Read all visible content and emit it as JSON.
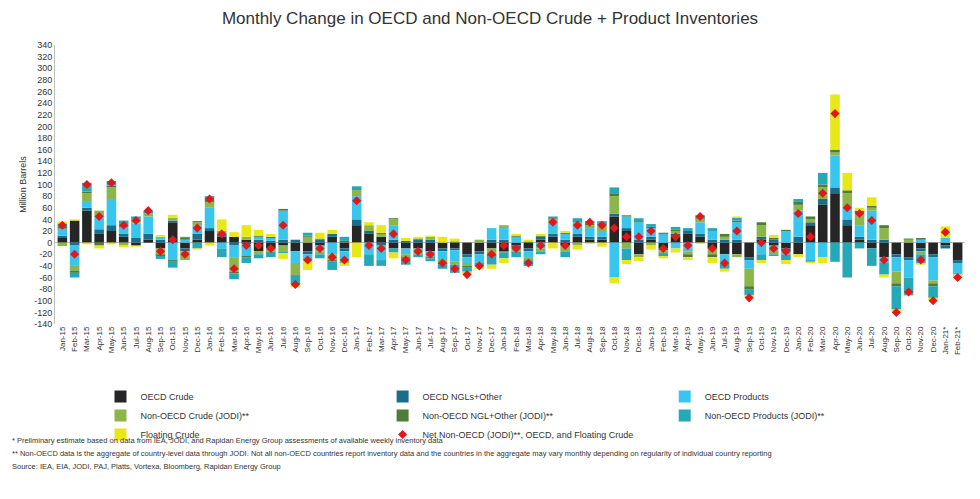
{
  "chart_data": {
    "type": "bar",
    "title": "Monthly Change in OECD and Non-OECD Crude + Product Inventories",
    "y_label": "Million Barrels",
    "categories": [
      "Jan-15",
      "Feb-15",
      "Mar-15",
      "Apr-15",
      "May-15",
      "Jun-15",
      "Jul-15",
      "Aug-15",
      "Sep-15",
      "Oct-15",
      "Nov-15",
      "Dec-15",
      "Jan-16",
      "Feb-16",
      "Mar-16",
      "Apr-16",
      "May-16",
      "Jun-16",
      "Jul-16",
      "Aug-16",
      "Sep-16",
      "Oct-16",
      "Nov-16",
      "Dec-16",
      "Jan-17",
      "Feb-17",
      "Mar-17",
      "Apr-17",
      "May-17",
      "Jun-17",
      "Jul-17",
      "Aug-17",
      "Sep-17",
      "Oct-17",
      "Nov-17",
      "Dec-17",
      "Jan-18",
      "Feb-18",
      "Mar-18",
      "Apr-18",
      "May-18",
      "Jun-18",
      "Jul-18",
      "Aug-18",
      "Sep-18",
      "Oct-18",
      "Nov-18",
      "Dec-18",
      "Jan-19",
      "Feb-19",
      "Mar-19",
      "Apr-19",
      "May-19",
      "Jun-19",
      "Jul-19",
      "Aug-19",
      "Sep-19",
      "Oct-19",
      "Nov-19",
      "Dec-19",
      "Jan-20",
      "Feb-20",
      "Mar-20",
      "Apr-20",
      "May-20",
      "Jun-20",
      "Jul-20",
      "Aug-20",
      "Sep-20",
      "Oct-20",
      "Nov-20",
      "Dec-20",
      "Jan-21*",
      "Feb-21*"
    ],
    "series": [
      {
        "name": "OECD Crude",
        "type": "bar",
        "color": "#262626",
        "values": [
          8,
          38,
          55,
          15,
          20,
          10,
          -5,
          5,
          -10,
          35,
          -10,
          5,
          20,
          10,
          10,
          5,
          -15,
          -10,
          -5,
          -15,
          -15,
          -5,
          10,
          -10,
          30,
          15,
          10,
          -10,
          -10,
          -10,
          -15,
          -10,
          -10,
          -20,
          -15,
          -10,
          -15,
          -5,
          -10,
          5,
          10,
          -5,
          10,
          5,
          5,
          45,
          20,
          -20,
          5,
          -10,
          10,
          15,
          10,
          -10,
          -20,
          -20,
          -25,
          5,
          -5,
          -10,
          -20,
          30,
          65,
          85,
          30,
          5,
          -10,
          -25,
          -20,
          -25,
          -10,
          -20,
          -5,
          -30
        ]
      },
      {
        "name": "OECD NGLs+Other",
        "type": "bar",
        "color": "#1b6e8a",
        "values": [
          4,
          -5,
          5,
          8,
          10,
          5,
          8,
          10,
          5,
          3,
          -5,
          10,
          5,
          5,
          -5,
          -3,
          5,
          3,
          5,
          5,
          -5,
          5,
          5,
          -5,
          10,
          5,
          -5,
          5,
          3,
          5,
          5,
          -5,
          -3,
          -5,
          -5,
          5,
          5,
          -5,
          -5,
          5,
          5,
          5,
          5,
          5,
          5,
          5,
          5,
          5,
          5,
          -3,
          5,
          5,
          5,
          5,
          5,
          5,
          -5,
          5,
          5,
          -5,
          10,
          5,
          10,
          10,
          10,
          5,
          5,
          5,
          -5,
          -5,
          -5,
          -5,
          -5,
          -5
        ]
      },
      {
        "name": "OECD Products",
        "type": "bar",
        "color": "#38c6ee",
        "values": [
          12,
          -35,
          10,
          20,
          45,
          12,
          25,
          30,
          5,
          -30,
          5,
          15,
          35,
          -10,
          -20,
          -20,
          5,
          5,
          50,
          -20,
          -10,
          -10,
          -20,
          -15,
          40,
          -20,
          -25,
          25,
          -10,
          -5,
          -10,
          -15,
          -20,
          -10,
          -15,
          20,
          20,
          10,
          -10,
          -10,
          20,
          10,
          20,
          15,
          10,
          -60,
          20,
          30,
          15,
          15,
          -10,
          -15,
          20,
          15,
          -15,
          30,
          -15,
          -20,
          -5,
          20,
          45,
          -30,
          -25,
          55,
          20,
          20,
          50,
          -10,
          -25,
          -30,
          5,
          -40,
          8,
          -20
        ]
      },
      {
        "name": "Non-OECD Crude (JODI)**",
        "type": "bar",
        "color": "#8cb54a",
        "values": [
          -6,
          -8,
          15,
          12,
          20,
          -5,
          5,
          5,
          -10,
          5,
          -15,
          5,
          10,
          5,
          -25,
          5,
          -5,
          -5,
          -10,
          -20,
          10,
          -5,
          -10,
          -5,
          10,
          10,
          5,
          10,
          -5,
          -5,
          5,
          -5,
          -5,
          -5,
          5,
          -10,
          5,
          -5,
          -5,
          -5,
          5,
          -10,
          -5,
          5,
          10,
          30,
          -10,
          -5,
          -5,
          -5,
          5,
          -5,
          5,
          -10,
          5,
          -5,
          -30,
          20,
          -10,
          -5,
          10,
          5,
          20,
          5,
          25,
          20,
          5,
          20,
          -20,
          5,
          -5,
          -5,
          0,
          0
        ]
      },
      {
        "name": "Non-OECD NGL+Other (JODI)**",
        "type": "bar",
        "color": "#4f7d39",
        "values": [
          3,
          -4,
          3,
          -5,
          3,
          3,
          2,
          0,
          -3,
          -3,
          3,
          2,
          5,
          0,
          -3,
          -2,
          2,
          2,
          3,
          -2,
          2,
          2,
          -2,
          3,
          2,
          0,
          2,
          2,
          -3,
          2,
          -2,
          -2,
          2,
          -2,
          0,
          -3,
          -2,
          2,
          2,
          2,
          2,
          2,
          2,
          2,
          2,
          5,
          2,
          2,
          2,
          2,
          2,
          -5,
          2,
          -5,
          5,
          3,
          -5,
          5,
          3,
          2,
          5,
          5,
          5,
          5,
          5,
          5,
          3,
          5,
          -5,
          2,
          3,
          -5,
          0,
          0
        ]
      },
      {
        "name": "Non-OECD Products (JODI)**",
        "type": "bar",
        "color": "#25a9b8",
        "values": [
          6,
          -8,
          15,
          0,
          8,
          8,
          5,
          5,
          -5,
          -10,
          2,
          -10,
          5,
          -15,
          -10,
          -10,
          -7,
          -10,
          -3,
          -15,
          5,
          -7,
          -15,
          7,
          5,
          -20,
          -10,
          -7,
          -10,
          -5,
          -5,
          -8,
          -14,
          -8,
          -5,
          -15,
          -10,
          -10,
          -10,
          -5,
          3,
          -10,
          5,
          5,
          5,
          10,
          -20,
          5,
          5,
          -5,
          5,
          5,
          5,
          5,
          -10,
          5,
          -10,
          -10,
          -3,
          -10,
          5,
          -3,
          20,
          -33,
          -60,
          -10,
          -30,
          -20,
          -40,
          -30,
          -15,
          -20,
          0,
          0
        ]
      },
      {
        "name": "Floating Crude",
        "type": "bar",
        "color": "#e8e817",
        "values": [
          3,
          2,
          -3,
          -5,
          -3,
          -3,
          -2,
          0,
          3,
          5,
          0,
          -2,
          -5,
          20,
          8,
          20,
          10,
          5,
          -10,
          -5,
          -17,
          10,
          7,
          -5,
          -25,
          5,
          13,
          -10,
          5,
          3,
          2,
          10,
          5,
          -5,
          -5,
          -7,
          -8,
          3,
          3,
          3,
          -10,
          3,
          -7,
          -2,
          -7,
          -10,
          -7,
          -7,
          -7,
          -4,
          -7,
          -5,
          -2,
          -10,
          -5,
          2,
          -5,
          -5,
          5,
          -7,
          -5,
          -2,
          -10,
          95,
          30,
          5,
          15,
          -5,
          -5,
          -2,
          -3,
          -5,
          20,
          -5
        ]
      },
      {
        "name": "Net Non-OECD (JODI)**, OECD, and Floating Crude",
        "type": "scatter",
        "marker": "diamond",
        "color": "#e0181e",
        "values": [
          30,
          -20,
          100,
          45,
          103,
          30,
          38,
          55,
          -15,
          5,
          -20,
          25,
          75,
          15,
          -45,
          -5,
          -5,
          -10,
          30,
          -72,
          -30,
          -10,
          -25,
          -30,
          72,
          -5,
          -10,
          15,
          -30,
          -15,
          -20,
          -35,
          -45,
          -55,
          -40,
          -20,
          -5,
          -10,
          -35,
          -5,
          35,
          -5,
          30,
          35,
          30,
          25,
          10,
          10,
          20,
          -10,
          10,
          -5,
          45,
          -10,
          -35,
          20,
          -95,
          0,
          -10,
          -15,
          50,
          10,
          85,
          222,
          60,
          50,
          38,
          -30,
          -120,
          -85,
          -30,
          -100,
          18,
          -60
        ]
      }
    ],
    "ylim": [
      -140,
      340
    ],
    "yticks": [
      -140,
      -120,
      -100,
      -80,
      -60,
      -40,
      -20,
      0,
      20,
      40,
      60,
      80,
      100,
      120,
      140,
      160,
      180,
      200,
      220,
      240,
      260,
      280,
      300,
      320,
      340
    ],
    "stacked": true,
    "grid": false,
    "legend": "bottom",
    "annotations": [
      "* Preliminary estimate based on data from IEA, JODI, and Rapidan Energy Group assessments of available weekly inventory data",
      "** Non-OECD data is the aggregate of country-level data through JODI. Not all non-OECD countries report inventory data and the countries in the aggregate may vary monthly depending on regularity of individual country reporting",
      "Source: IEA, EIA, JODI, PAJ, Platts, Vortexa, Bloomberg, Rapidan Energy Group"
    ]
  }
}
